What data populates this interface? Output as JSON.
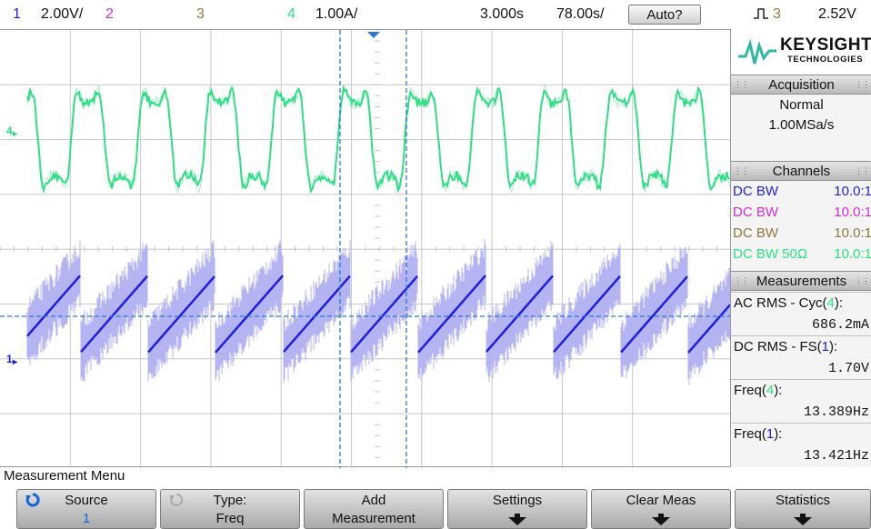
{
  "top_bar": {
    "ch1_num": "1",
    "ch1_scale": "2.00V/",
    "ch2_num": "2",
    "ch3_num": "3",
    "ch4_num": "4",
    "ch4_scale": "1.00A/",
    "time_delay": "3.000s",
    "time_scale": "78.00s/",
    "run_mode": "Auto?",
    "trigger_source": "3",
    "trigger_level": "2.52V"
  },
  "screen": {
    "ch4_marker": "4",
    "ch1_marker": "1"
  },
  "brand": {
    "name": "KEYSIGHT",
    "sub": "TECHNOLOGIES"
  },
  "acquisition": {
    "header": "Acquisition",
    "mode": "Normal",
    "rate": "1.00MSa/s"
  },
  "channels": {
    "header": "Channels",
    "rows": [
      {
        "coupling": "DC BW",
        "probe": "10.0:1"
      },
      {
        "coupling": "DC BW",
        "probe": "10.0:1"
      },
      {
        "coupling": "DC BW",
        "probe": "10.0:1"
      },
      {
        "coupling": "DC BW 50Ω",
        "probe": "10.0:1"
      }
    ]
  },
  "measurements": {
    "header": "Measurements",
    "items": [
      {
        "label_pre": "AC RMS - Cyc(",
        "src": "4",
        "label_post": "):",
        "value": "686.2mA"
      },
      {
        "label_pre": "DC RMS - FS(",
        "src": "1",
        "label_post": "):",
        "value": "1.70V"
      },
      {
        "label_pre": "Freq(",
        "src": "4",
        "label_post": "):",
        "value": "13.389Hz"
      },
      {
        "label_pre": "Freq(",
        "src": "1",
        "label_post": "):",
        "value": "13.421Hz"
      }
    ]
  },
  "menu": {
    "title": "Measurement Menu",
    "softkeys": [
      {
        "line1": "Source",
        "line2": "1"
      },
      {
        "line1": "Type:",
        "line2": "Freq"
      },
      {
        "line1": "Add",
        "line2": "Measurement"
      },
      {
        "line1": "Settings"
      },
      {
        "line1": "Clear Meas"
      },
      {
        "line1": "Statistics"
      }
    ]
  },
  "colors": {
    "ch1": "#1e1ee0",
    "ch1_noise": "#b4b4f2",
    "ch2": "#d030d0",
    "ch3": "#8c7a3c",
    "ch4": "#2ee083",
    "cursor": "#2a78d8",
    "grid": "#c8c8c8"
  },
  "icons": {
    "source_key": "rotate-knob-icon",
    "type_key": "rotate-knob-icon",
    "trigger": "rising-edge-icon",
    "logo": "keysight-wave-logo"
  }
}
